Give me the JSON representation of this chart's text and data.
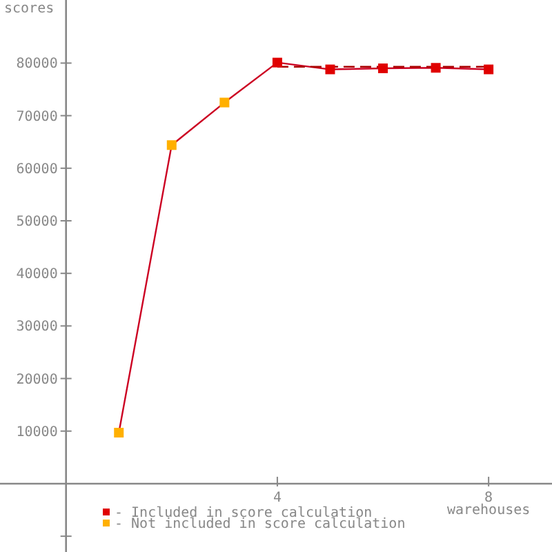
{
  "chart_data": {
    "type": "scatter",
    "xlabel": "warehouses",
    "ylabel": "scores",
    "xlim": [
      -1.25,
      9.2
    ],
    "ylim": [
      -13000,
      92000
    ],
    "xticks": [
      4,
      8
    ],
    "yticks": [
      {
        "value": -10000,
        "label": null
      },
      10000,
      20000,
      30000,
      40000,
      50000,
      60000,
      70000,
      80000
    ],
    "series": [
      {
        "type": "line",
        "color": "#cc0022",
        "x": [
          1,
          2,
          3,
          4,
          5,
          6,
          7,
          8
        ],
        "values": [
          9700,
          64400,
          72500,
          80100,
          78800,
          79000,
          79100,
          78800
        ],
        "marker": "none",
        "line_style": "solid"
      },
      {
        "type": "line",
        "color": "#aa0000",
        "x": [
          4,
          8
        ],
        "values": [
          79300,
          79300
        ],
        "marker": "none",
        "line_style": "dashed"
      },
      {
        "name": "- Included in score calculation",
        "color": "#e00000",
        "x": [
          4,
          5,
          6,
          7,
          8
        ],
        "values": [
          80100,
          78800,
          79000,
          79100,
          78800
        ],
        "marker": "square"
      },
      {
        "name": "- Not included in score calculation",
        "color": "#ffb000",
        "x": [
          1,
          2,
          3
        ],
        "values": [
          9700,
          64400,
          72500
        ],
        "marker": "square"
      }
    ],
    "legend": "bottom left",
    "grid": false
  }
}
